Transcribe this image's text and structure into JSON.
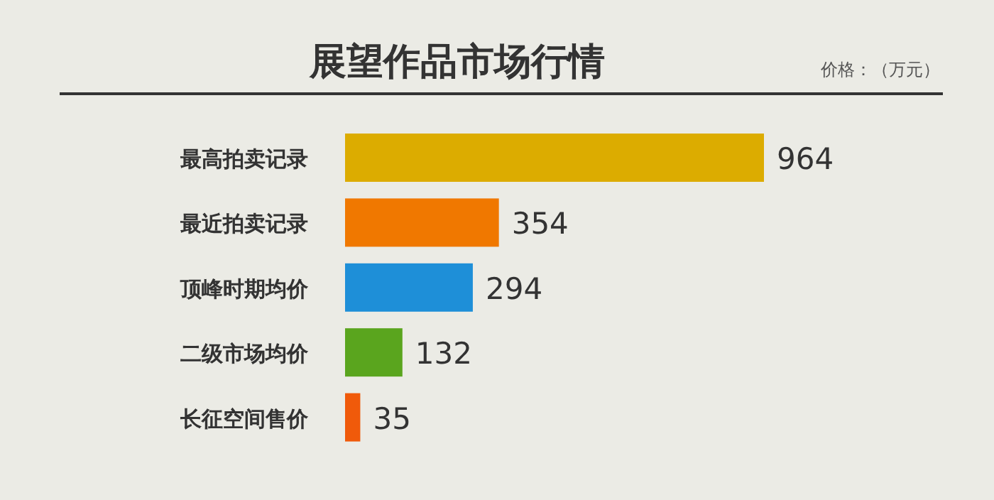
{
  "chart_data": {
    "type": "bar",
    "orientation": "horizontal",
    "title": "展望作品市场行情",
    "annotations": [
      "价格：（万元）"
    ],
    "categories": [
      "最高拍卖记录",
      "最近拍卖记录",
      "顶峰时期均价",
      "二级市场均价",
      "长征空间售价"
    ],
    "values": [
      964,
      354,
      294,
      132,
      35
    ],
    "colors": [
      "#dcac00",
      "#f07800",
      "#1e8fd8",
      "#5aa51e",
      "#f05a0a"
    ],
    "data_labels": true
  }
}
